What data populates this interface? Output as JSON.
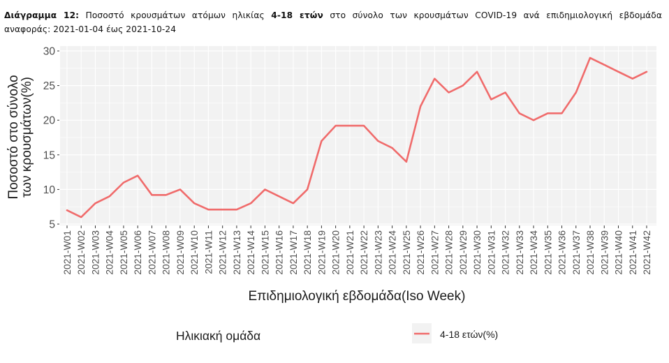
{
  "caption": {
    "label": "Διάγραμμα 12:",
    "text_before_bold": " Ποσοστό κρουσμάτων ατόμων ηλικίας ",
    "bold_age": "4-18 ετών",
    "text_after_bold": " στο σύνολο των κρουσμάτων COVID-19 ανά επιδημιολογική εβδομάδα",
    "line2": "αναφοράς: 2021-01-04 έως 2021-10-24"
  },
  "colors": {
    "series": "#F06B6B",
    "panel_bg": "#F2F2F2",
    "grid": "#FFFFFF",
    "tick_text": "#4D4D4D",
    "axis_title": "#1A1A1A"
  },
  "chart_data": {
    "type": "line",
    "title": "Διάγραμμα 12: Ποσοστό κρουσμάτων ατόμων ηλικίας 4-18 ετών στο σύνολο των κρουσμάτων COVID-19 ανά επιδημιολογική εβδομάδα αναφοράς: 2021-01-04 έως 2021-10-24",
    "xlabel": "Επιδημιολογική εβδομάδα(Iso Week)",
    "ylabel_lines": [
      "Ποσοστό στο σύνολο",
      "των κρουσμάτων(%)"
    ],
    "ylabel": "Ποσοστό στο σύνολο των κρουσμάτων(%)",
    "ylim": [
      5,
      30
    ],
    "yticks": [
      5,
      10,
      15,
      20,
      25,
      30
    ],
    "grid": true,
    "legend_position": "bottom",
    "legend_title": "Ηλικιακή ομάδα",
    "categories": [
      "2021-W01",
      "2021-W02",
      "2021-W03",
      "2021-W04",
      "2021-W05",
      "2021-W06",
      "2021-W07",
      "2021-W08",
      "2021-W09",
      "2021-W10",
      "2021-W11",
      "2021-W12",
      "2021-W13",
      "2021-W14",
      "2021-W15",
      "2021-W16",
      "2021-W17",
      "2021-W18",
      "2021-W19",
      "2021-W20",
      "2021-W21",
      "2021-W22",
      "2021-W23",
      "2021-W24",
      "2021-W25",
      "2021-W26",
      "2021-W27",
      "2021-W28",
      "2021-W29",
      "2021-W30",
      "2021-W31",
      "2021-W32",
      "2021-W33",
      "2021-W34",
      "2021-W35",
      "2021-W36",
      "2021-W37",
      "2021-W38",
      "2021-W39",
      "2021-W40",
      "2021-W41",
      "2021-W42"
    ],
    "series": [
      {
        "name": "4-18 ετών(%)",
        "values": [
          7,
          6,
          8,
          9,
          11,
          12,
          9.2,
          9.2,
          10,
          8,
          7.1,
          7.1,
          7.1,
          8,
          10,
          9,
          8,
          10,
          17,
          19.2,
          19.2,
          19.2,
          17,
          16,
          14,
          22,
          26,
          24,
          25,
          27,
          23,
          24,
          21,
          20,
          21,
          21,
          24,
          29,
          28,
          27,
          26,
          27
        ]
      }
    ]
  }
}
